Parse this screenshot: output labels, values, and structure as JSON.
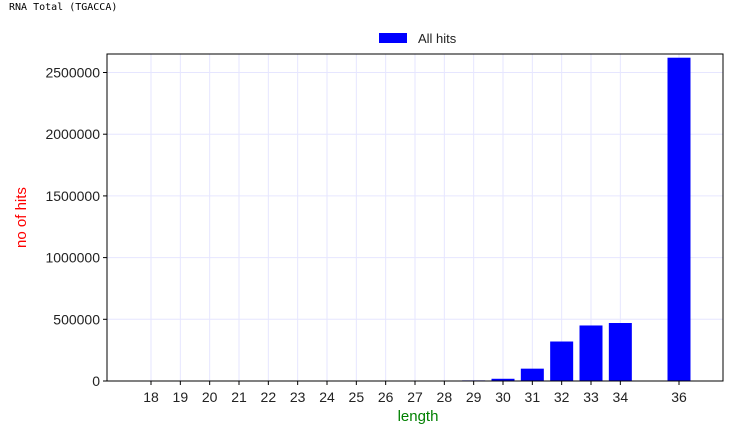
{
  "page_title": "RNA Total (TGACCA)",
  "colors": {
    "bar": "#0000ff",
    "xlabel": "#008000",
    "ylabel": "#ff0000",
    "grid": "#e6e6ff"
  },
  "chart_data": {
    "type": "bar",
    "title": "",
    "xlabel": "length",
    "ylabel": "no of hits",
    "ylim": [
      0,
      2650000
    ],
    "grid": true,
    "legend": {
      "placement": "top-center"
    },
    "yticks": [
      0,
      500000,
      1000000,
      1500000,
      2000000,
      2500000
    ],
    "ytick_labels": [
      "0",
      "500000",
      "1000000",
      "1500000",
      "2000000",
      "2500000"
    ],
    "categories": [
      "18",
      "19",
      "20",
      "21",
      "22",
      "23",
      "24",
      "25",
      "26",
      "27",
      "28",
      "29",
      "30",
      "31",
      "32",
      "33",
      "34",
      "36"
    ],
    "series": [
      {
        "name": "All hits",
        "color": "#0000ff",
        "values": [
          0,
          0,
          0,
          0,
          0,
          0,
          0,
          0,
          0,
          0,
          0,
          5000,
          18000,
          100000,
          320000,
          450000,
          470000,
          2620000
        ]
      }
    ]
  }
}
